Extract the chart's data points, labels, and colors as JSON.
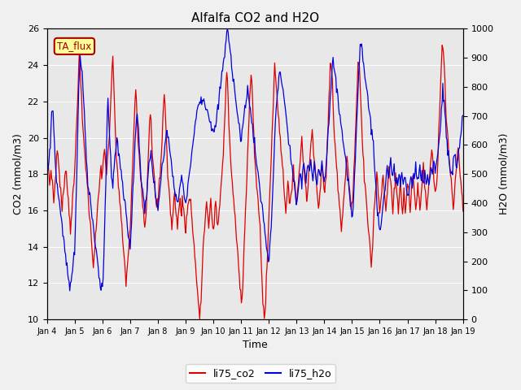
{
  "title": "Alfalfa CO2 and H2O",
  "xlabel": "Time",
  "ylabel_left": "CO2 (mmol/m3)",
  "ylabel_right": "H2O (mmol/m3)",
  "ylim_left": [
    10,
    26
  ],
  "ylim_right": [
    0,
    1000
  ],
  "yticks_left": [
    10,
    12,
    14,
    16,
    18,
    20,
    22,
    24,
    26
  ],
  "yticks_right": [
    0,
    100,
    200,
    300,
    400,
    500,
    600,
    700,
    800,
    900,
    1000
  ],
  "xtick_labels": [
    "Jan 4",
    "Jan 5",
    "Jan 6",
    "Jan 7",
    "Jan 8",
    "Jan 9",
    "Jan 10",
    "Jan 11",
    "Jan 12",
    "Jan 13",
    "Jan 14",
    "Jan 15",
    "Jan 16",
    "Jan 17",
    "Jan 18",
    "Jan 19"
  ],
  "legend_label_co2": "li75_co2",
  "legend_label_h2o": "li75_h2o",
  "color_co2": "#dd0000",
  "color_h2o": "#0000dd",
  "annotation_text": "TA_flux",
  "annotation_color": "#aa0000",
  "annotation_bg": "#ffff99",
  "fig_bg": "#f0f0f0",
  "axes_bg": "#e8e8e8",
  "grid_color": "#ffffff"
}
